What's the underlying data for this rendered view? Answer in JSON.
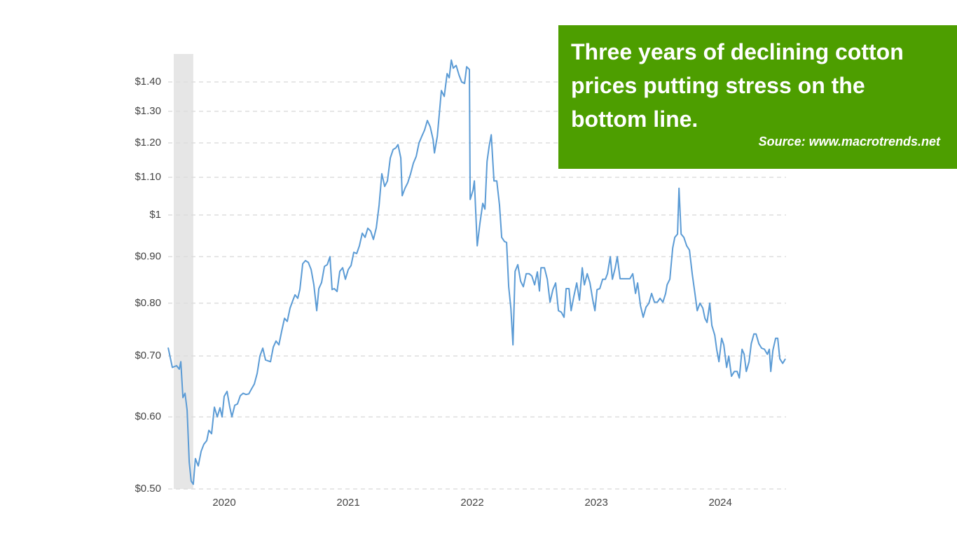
{
  "chart_data": {
    "type": "line",
    "log_scale": true,
    "grid": true,
    "color": "#5b9bd5",
    "shade_color": "#e6e6e6",
    "annotation": {
      "text": "Three years of declining cotton prices putting stress on the bottom line.",
      "source": "Source: www.macrotrends.net",
      "color": "#4d9e00"
    },
    "shaded_range": [
      2019.593,
      2019.751
    ],
    "xlim": [
      2019.548,
      2024.53
    ],
    "xticks": [
      2020,
      2021,
      2022,
      2023,
      2024
    ],
    "ylim": [
      0.5,
      1.503
    ],
    "yticks": [
      {
        "value": 0.5,
        "label": "$0.50"
      },
      {
        "value": 0.6,
        "label": "$0.60"
      },
      {
        "value": 0.7,
        "label": "$0.70"
      },
      {
        "value": 0.8,
        "label": "$0.80"
      },
      {
        "value": 0.9,
        "label": "$0.90"
      },
      {
        "value": 1,
        "label": "$1"
      },
      {
        "value": 1.1,
        "label": "$1.10"
      },
      {
        "value": 1.2,
        "label": "$1.20"
      },
      {
        "value": 1.3,
        "label": "$1.30"
      },
      {
        "value": 1.4,
        "label": "$1.40"
      }
    ],
    "x": [
      2019.548,
      2019.582,
      2019.616,
      2019.638,
      2019.65,
      2019.667,
      2019.684,
      2019.701,
      2019.718,
      2019.734,
      2019.751,
      2019.768,
      2019.791,
      2019.814,
      2019.836,
      2019.859,
      2019.876,
      2019.898,
      2019.921,
      2019.944,
      2019.966,
      2019.983,
      2020.0,
      2020.023,
      2020.045,
      2020.062,
      2020.085,
      2020.107,
      2020.13,
      2020.153,
      2020.175,
      2020.198,
      2020.22,
      2020.243,
      2020.266,
      2020.288,
      2020.311,
      2020.333,
      2020.373,
      2020.396,
      2020.418,
      2020.441,
      2020.463,
      2020.486,
      2020.508,
      2020.531,
      2020.554,
      2020.571,
      2020.593,
      2020.61,
      2020.633,
      2020.655,
      2020.678,
      2020.701,
      2020.723,
      2020.746,
      2020.763,
      2020.785,
      2020.808,
      2020.831,
      2020.853,
      2020.87,
      2020.887,
      2020.91,
      2020.932,
      2020.955,
      2020.977,
      2021.0,
      2021.023,
      2021.045,
      2021.068,
      2021.09,
      2021.113,
      2021.136,
      2021.158,
      2021.181,
      2021.203,
      2021.226,
      2021.249,
      2021.271,
      2021.294,
      2021.316,
      2021.339,
      2021.362,
      2021.384,
      2021.401,
      2021.424,
      2021.435,
      2021.458,
      2021.48,
      2021.503,
      2021.525,
      2021.548,
      2021.571,
      2021.593,
      2021.616,
      2021.638,
      2021.661,
      2021.684,
      2021.695,
      2021.718,
      2021.734,
      2021.751,
      2021.774,
      2021.797,
      2021.814,
      2021.831,
      2021.847,
      2021.87,
      2021.893,
      2021.915,
      2021.938,
      2021.955,
      2021.977,
      2021.983,
      2022.006,
      2022.017,
      2022.04,
      2022.062,
      2022.085,
      2022.102,
      2022.119,
      2022.136,
      2022.153,
      2022.175,
      2022.198,
      2022.22,
      2022.237,
      2022.26,
      2022.277,
      2022.294,
      2022.311,
      2022.328,
      2022.345,
      2022.367,
      2022.39,
      2022.412,
      2022.435,
      2022.458,
      2022.48,
      2022.503,
      2022.525,
      2022.542,
      2022.554,
      2022.582,
      2022.605,
      2022.627,
      2022.65,
      2022.672,
      2022.695,
      2022.718,
      2022.74,
      2022.757,
      2022.78,
      2022.797,
      2022.819,
      2022.842,
      2022.864,
      2022.887,
      2022.904,
      2022.927,
      2022.949,
      2022.972,
      2022.989,
      2023.006,
      2023.028,
      2023.051,
      2023.073,
      2023.09,
      2023.113,
      2023.13,
      2023.153,
      2023.169,
      2023.192,
      2023.22,
      2023.249,
      2023.271,
      2023.294,
      2023.316,
      2023.333,
      2023.356,
      2023.378,
      2023.401,
      2023.424,
      2023.446,
      2023.469,
      2023.492,
      2023.514,
      2023.537,
      2023.559,
      2023.571,
      2023.593,
      2023.616,
      2023.633,
      2023.655,
      2023.667,
      2023.684,
      2023.706,
      2023.729,
      2023.751,
      2023.774,
      2023.797,
      2023.814,
      2023.836,
      2023.859,
      2023.876,
      2023.893,
      2023.915,
      2023.932,
      2023.955,
      2023.972,
      2023.989,
      2024.011,
      2024.028,
      2024.051,
      2024.068,
      2024.09,
      2024.113,
      2024.136,
      2024.153,
      2024.175,
      2024.192,
      2024.209,
      2024.232,
      2024.249,
      2024.271,
      2024.288,
      2024.311,
      2024.333,
      2024.356,
      2024.379,
      2024.395,
      2024.407,
      2024.424,
      2024.446,
      2024.463,
      2024.48,
      2024.503,
      2024.525
    ],
    "values": [
      0.715,
      0.68,
      0.683,
      0.677,
      0.69,
      0.63,
      0.637,
      0.61,
      0.535,
      0.51,
      0.506,
      0.54,
      0.53,
      0.55,
      0.56,
      0.565,
      0.58,
      0.575,
      0.615,
      0.6,
      0.614,
      0.6,
      0.632,
      0.64,
      0.615,
      0.6,
      0.618,
      0.62,
      0.633,
      0.637,
      0.635,
      0.636,
      0.644,
      0.652,
      0.67,
      0.7,
      0.714,
      0.693,
      0.69,
      0.716,
      0.727,
      0.72,
      0.745,
      0.77,
      0.764,
      0.79,
      0.806,
      0.817,
      0.81,
      0.828,
      0.884,
      0.891,
      0.887,
      0.871,
      0.838,
      0.785,
      0.83,
      0.843,
      0.878,
      0.882,
      0.9,
      0.828,
      0.83,
      0.824,
      0.867,
      0.875,
      0.85,
      0.871,
      0.88,
      0.91,
      0.907,
      0.925,
      0.955,
      0.945,
      0.967,
      0.96,
      0.94,
      0.968,
      1.025,
      1.11,
      1.075,
      1.09,
      1.155,
      1.18,
      1.185,
      1.195,
      1.155,
      1.05,
      1.07,
      1.085,
      1.11,
      1.14,
      1.16,
      1.2,
      1.22,
      1.24,
      1.27,
      1.25,
      1.21,
      1.17,
      1.22,
      1.29,
      1.37,
      1.35,
      1.43,
      1.415,
      1.48,
      1.45,
      1.46,
      1.425,
      1.4,
      1.395,
      1.455,
      1.445,
      1.04,
      1.065,
      1.09,
      0.925,
      0.98,
      1.03,
      1.015,
      1.145,
      1.19,
      1.225,
      1.09,
      1.09,
      1.025,
      0.945,
      0.935,
      0.933,
      0.834,
      0.79,
      0.72,
      0.867,
      0.882,
      0.846,
      0.834,
      0.862,
      0.862,
      0.857,
      0.838,
      0.866,
      0.825,
      0.875,
      0.875,
      0.85,
      0.802,
      0.828,
      0.842,
      0.785,
      0.782,
      0.772,
      0.83,
      0.83,
      0.785,
      0.814,
      0.842,
      0.806,
      0.875,
      0.838,
      0.862,
      0.842,
      0.806,
      0.785,
      0.828,
      0.83,
      0.85,
      0.85,
      0.862,
      0.9,
      0.85,
      0.875,
      0.9,
      0.851,
      0.851,
      0.851,
      0.851,
      0.862,
      0.82,
      0.842,
      0.795,
      0.772,
      0.792,
      0.8,
      0.82,
      0.802,
      0.802,
      0.81,
      0.802,
      0.82,
      0.838,
      0.85,
      0.92,
      0.945,
      0.953,
      1.07,
      0.953,
      0.945,
      0.925,
      0.915,
      0.86,
      0.817,
      0.785,
      0.8,
      0.79,
      0.77,
      0.762,
      0.8,
      0.756,
      0.738,
      0.71,
      0.69,
      0.732,
      0.72,
      0.68,
      0.7,
      0.665,
      0.673,
      0.673,
      0.662,
      0.712,
      0.703,
      0.673,
      0.69,
      0.722,
      0.74,
      0.74,
      0.722,
      0.714,
      0.712,
      0.703,
      0.712,
      0.673,
      0.71,
      0.732,
      0.732,
      0.695,
      0.687,
      0.695
    ]
  }
}
